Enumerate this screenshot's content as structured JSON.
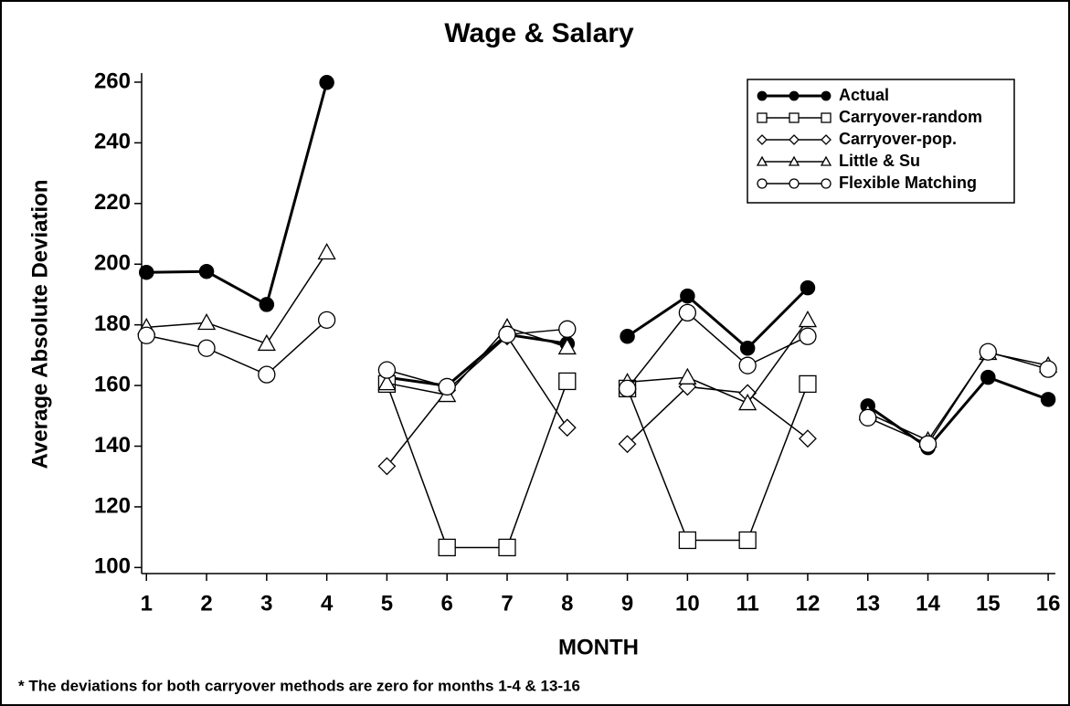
{
  "chart_data": {
    "type": "line",
    "title": "Wage & Salary",
    "x_label": "MONTH",
    "y_label": "Average Absolute Deviation",
    "footnote": "* The deviations for both carryover methods are zero for months 1-4 & 13-16",
    "x": [
      1,
      2,
      3,
      4,
      5,
      6,
      7,
      8,
      9,
      10,
      11,
      12,
      13,
      14,
      15,
      16
    ],
    "breaks_after": [
      4,
      8,
      12
    ],
    "xlim": [
      0.92,
      16.12
    ],
    "xticks": [
      1,
      2,
      3,
      4,
      5,
      6,
      7,
      8,
      9,
      10,
      11,
      12,
      13,
      14,
      15,
      16
    ],
    "ylim": [
      98,
      263
    ],
    "yticks": [
      100,
      120,
      140,
      160,
      180,
      200,
      220,
      240,
      260
    ],
    "legend": "top-right",
    "series": [
      {
        "name": "Actual",
        "color": "#000000",
        "marker": "filled-circle",
        "values": [
          197.3,
          197.6,
          186.7,
          259.9,
          162.7,
          159.9,
          176.8,
          173.8,
          176.2,
          189.5,
          172.3,
          192.2,
          153.3,
          139.5,
          162.7,
          155.4
        ]
      },
      {
        "name": "Carryover-random",
        "color": "#000000",
        "marker": "square",
        "values": [
          null,
          null,
          null,
          null,
          160.5,
          106.6,
          106.6,
          161.4,
          159,
          109,
          109,
          160.5,
          null,
          null,
          null,
          null
        ]
      },
      {
        "name": "Carryover-pop.",
        "color": "#000000",
        "marker": "diamond",
        "values": [
          null,
          null,
          null,
          null,
          133.4,
          158.4,
          176.2,
          146.1,
          140.7,
          159.6,
          157.5,
          142.5,
          null,
          null,
          null,
          null
        ]
      },
      {
        "name": "Little & Su",
        "color": "#000000",
        "marker": "triangle",
        "values": [
          179.2,
          180.7,
          173.8,
          203.9,
          160.8,
          156.9,
          179.2,
          172.6,
          161.1,
          162.7,
          154.2,
          181.6,
          150.9,
          141.9,
          170.8,
          166.6
        ]
      },
      {
        "name": "Flexible Matching",
        "color": "#000000",
        "marker": "circle",
        "values": [
          176.5,
          172.3,
          163.6,
          181.6,
          165.1,
          159.6,
          176.8,
          178.6,
          159,
          184,
          166.6,
          176.2,
          149.4,
          140.7,
          171.1,
          165.4
        ]
      }
    ]
  }
}
